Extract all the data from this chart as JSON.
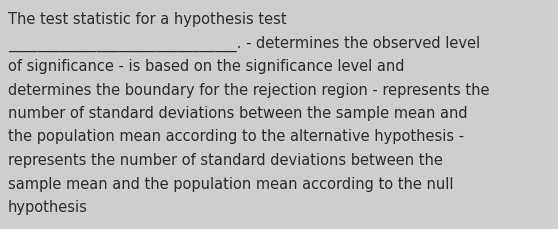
{
  "background_color": "#cecece",
  "text_color": "#2b2b2b",
  "font_size": 10.5,
  "lines": [
    "The test statistic for a hypothesis test",
    "_______________________________. - determines the observed level",
    "of significance - is based on the significance level and",
    "determines the boundary for the rejection region - represents the",
    "number of standard deviations between the sample mean and",
    "the population mean according to the alternative hypothesis -",
    "represents the number of standard deviations between the",
    "sample mean and the population mean according to the null",
    "hypothesis"
  ],
  "figwidth": 5.58,
  "figheight": 2.3,
  "dpi": 100
}
